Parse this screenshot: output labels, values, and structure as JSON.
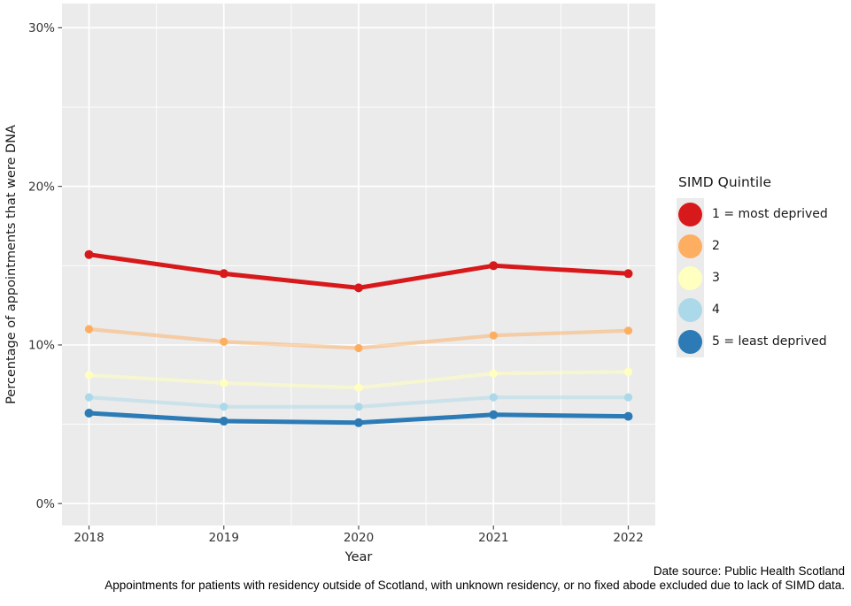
{
  "chart_data": {
    "type": "line",
    "x": [
      2018,
      2019,
      2020,
      2021,
      2022
    ],
    "x_tick_labels": [
      "2018",
      "2019",
      "2020",
      "2021",
      "2022"
    ],
    "xlabel": "Year",
    "ylabel": "Percentage of appointments that were DNA",
    "y_ticks": [
      0,
      10,
      20,
      30
    ],
    "y_tick_labels": [
      "0%",
      "10%",
      "20%",
      "30%"
    ],
    "y_minor_ticks": [
      5,
      15,
      25
    ],
    "ylim_displayed": [
      -1.4,
      31.5
    ],
    "grid": true,
    "panel_bg": "#ebebeb",
    "grid_color": "#ffffff",
    "legend_title": "SIMD Quintile",
    "legend_position": "right",
    "series": [
      {
        "name": "1 = most deprived",
        "color": "#d7191c",
        "line_alpha": 1,
        "line_width": 5,
        "point_radius": 5,
        "values": [
          15.7,
          14.5,
          13.6,
          15.0,
          14.5
        ]
      },
      {
        "name": "2",
        "color": "#fdae61",
        "line_alpha": 0.5,
        "line_width": 4.2,
        "point_radius": 4.6,
        "values": [
          11.0,
          10.2,
          9.8,
          10.6,
          10.9
        ]
      },
      {
        "name": "3",
        "color": "#ffffbf",
        "line_alpha": 0.55,
        "line_width": 4.2,
        "point_radius": 4.6,
        "values": [
          8.1,
          7.6,
          7.3,
          8.2,
          8.3
        ]
      },
      {
        "name": "4",
        "color": "#abd9e9",
        "line_alpha": 0.5,
        "line_width": 4.2,
        "point_radius": 4.6,
        "values": [
          6.7,
          6.1,
          6.1,
          6.7,
          6.7
        ]
      },
      {
        "name": "5 = least deprived",
        "color": "#2c7bb6",
        "line_alpha": 1,
        "line_width": 5,
        "point_radius": 5,
        "values": [
          5.7,
          5.2,
          5.1,
          5.6,
          5.5
        ]
      }
    ]
  },
  "captions": {
    "source": "Date source: Public Health Scotland",
    "note": "Appointments for patients with residency outside of Scotland, with unknown residency, or no fixed abode excluded due to lack of SIMD data."
  }
}
